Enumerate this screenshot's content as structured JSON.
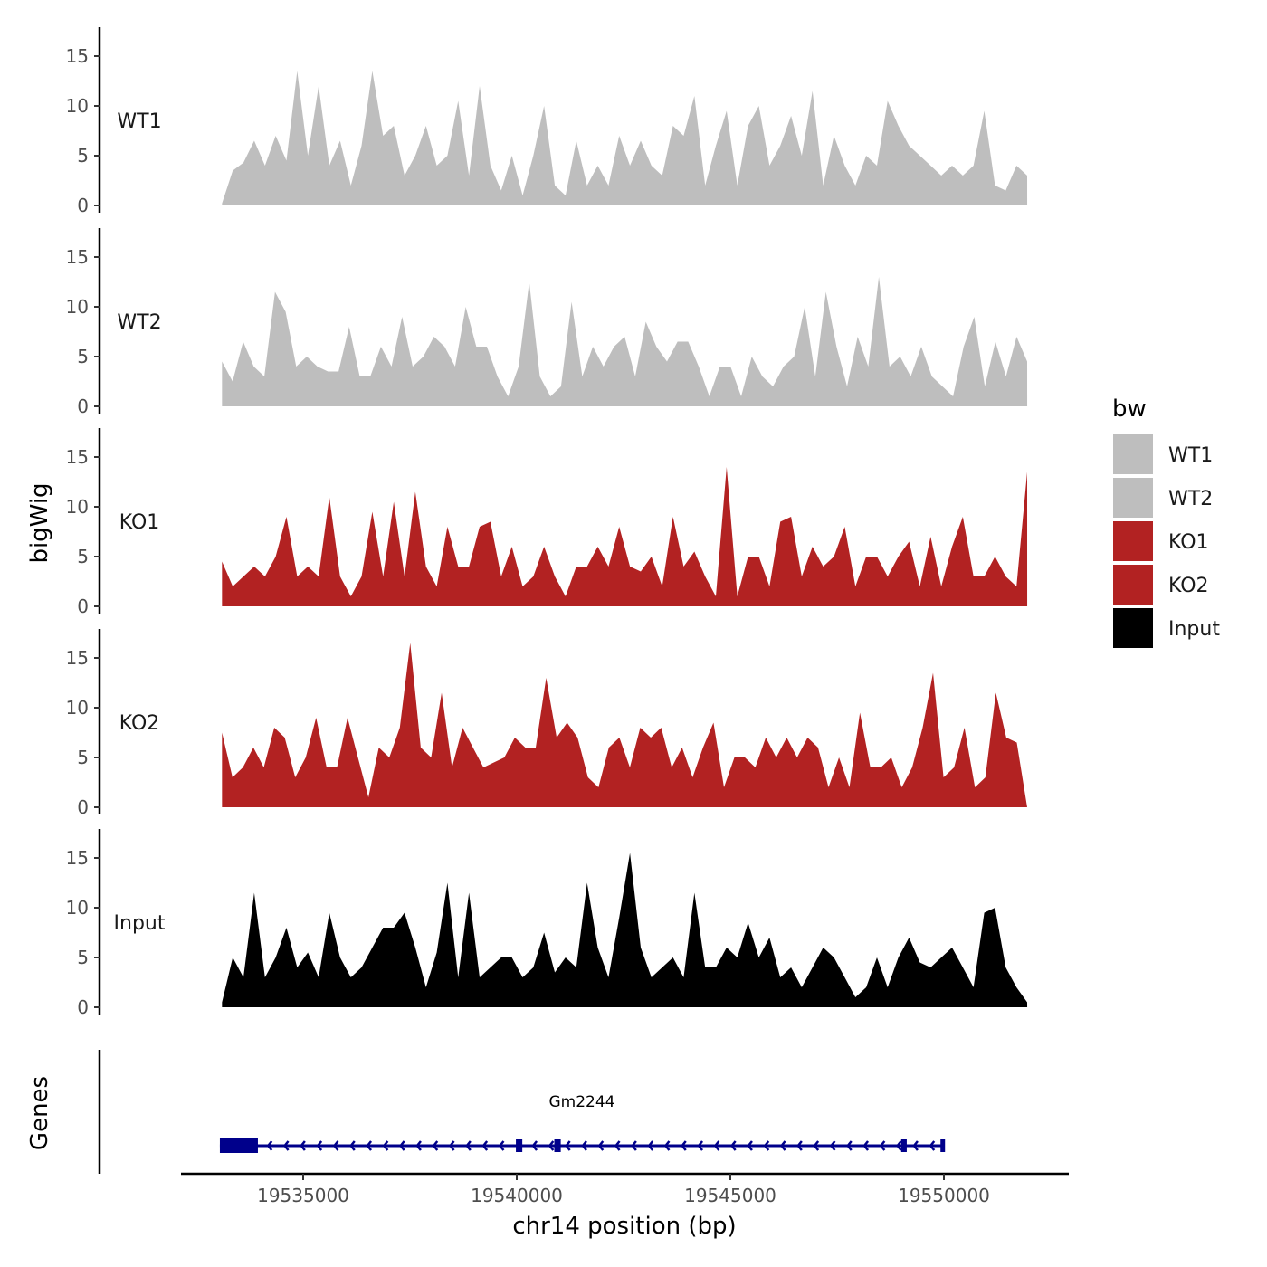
{
  "chart_data": {
    "type": "area",
    "xlabel": "chr14 position (bp)",
    "ylabel": "bigWig",
    "genes_label": "Genes",
    "xlim": [
      19531000,
      19552900
    ],
    "x_range": [
      19533100,
      19551950
    ],
    "x_ticks": [
      19535000,
      19540000,
      19545000,
      19550000
    ],
    "x_tick_labels": [
      "19535000",
      "19540000",
      "19545000",
      "19550000"
    ],
    "ylim": [
      0,
      17.5
    ],
    "y_ticks": [
      0,
      5,
      10,
      15
    ],
    "y_tick_labels": [
      "0",
      "5",
      "10",
      "15"
    ],
    "legend": {
      "title": "bw",
      "position": "right",
      "entries": [
        {
          "label": "WT1",
          "color": "#BEBEBE"
        },
        {
          "label": "WT2",
          "color": "#BEBEBE"
        },
        {
          "label": "KO1",
          "color": "#B22222"
        },
        {
          "label": "KO2",
          "color": "#B22222"
        },
        {
          "label": "Input",
          "color": "#000000"
        }
      ]
    },
    "series": [
      {
        "name": "WT1",
        "color": "#BEBEBE",
        "values": [
          0.2,
          3.5,
          4.3,
          6.5,
          4,
          7,
          4.5,
          13.5,
          5,
          12,
          4,
          6.5,
          2,
          6,
          13.5,
          7,
          8,
          3,
          5,
          8,
          4,
          5,
          10.5,
          3,
          12,
          4,
          1.5,
          5,
          1,
          5,
          10,
          2,
          1,
          6.5,
          2,
          4,
          2,
          7,
          4,
          6.5,
          4,
          3,
          8,
          7,
          11,
          2,
          6,
          9.5,
          2,
          8,
          10,
          4,
          6,
          9,
          5,
          11.5,
          2,
          7,
          4,
          2,
          5,
          4,
          10.5,
          8,
          6,
          5,
          4,
          3,
          4,
          3,
          4,
          9.5,
          2,
          1.5,
          4,
          3
        ]
      },
      {
        "name": "WT2",
        "color": "#BEBEBE",
        "values": [
          4.5,
          2.5,
          6.5,
          4,
          3,
          11.5,
          9.5,
          4,
          5,
          4,
          3.5,
          3.5,
          8,
          3,
          3,
          6,
          4,
          9,
          4,
          5,
          7,
          6,
          4,
          10,
          6,
          6,
          3,
          1,
          4,
          12.5,
          3,
          1,
          2,
          10.5,
          3,
          6,
          4,
          6,
          7,
          3,
          8.5,
          6,
          4.5,
          6.5,
          6.5,
          4,
          1,
          4,
          4,
          1,
          5,
          3,
          2,
          4,
          5,
          10,
          3,
          11.5,
          6,
          2,
          7,
          4,
          13,
          4,
          5,
          3,
          6,
          3,
          2,
          1,
          6,
          9,
          2,
          6.5,
          3,
          7,
          4.5
        ]
      },
      {
        "name": "KO1",
        "color": "#B22222",
        "values": [
          4.5,
          2,
          3,
          4,
          3,
          5,
          9,
          3,
          4,
          3,
          11,
          3,
          1,
          3,
          9.5,
          3,
          10.5,
          3,
          11.5,
          4,
          2,
          8,
          4,
          4,
          8,
          8.5,
          3,
          6,
          2,
          3,
          6,
          3,
          1,
          4,
          4,
          6,
          4,
          8,
          4,
          3.5,
          5,
          2,
          9,
          4,
          5.5,
          3,
          1,
          14,
          1,
          5,
          5,
          2,
          8.5,
          9,
          3,
          6,
          4,
          5,
          8,
          2,
          5,
          5,
          3,
          5,
          6.5,
          2,
          7,
          2,
          6,
          9,
          3,
          3,
          5,
          3,
          2,
          13.5
        ]
      },
      {
        "name": "KO2",
        "color": "#B22222",
        "values": [
          7.5,
          3,
          4,
          6,
          4,
          8,
          7,
          3,
          5,
          9,
          4,
          4,
          9,
          5,
          1,
          6,
          5,
          8,
          16.5,
          6,
          5,
          11.5,
          4,
          8,
          6,
          4,
          4.5,
          5,
          7,
          6,
          6,
          13,
          7,
          8.5,
          7,
          3,
          2,
          6,
          7,
          4,
          8,
          7,
          8,
          4,
          6,
          3,
          6,
          8.5,
          2,
          5,
          5,
          4,
          7,
          5,
          7,
          5,
          7,
          6,
          2,
          5,
          2,
          9.5,
          4,
          4,
          5,
          2,
          4,
          8,
          13.5,
          3,
          4,
          8,
          2,
          3,
          11.5,
          7,
          6.5,
          0
        ]
      },
      {
        "name": "Input",
        "color": "#000000",
        "values": [
          0.5,
          5,
          3,
          11.5,
          3,
          5,
          8,
          4,
          5.5,
          3,
          9.5,
          5,
          3,
          4,
          6,
          8,
          8,
          9.5,
          6,
          2,
          5.5,
          12.5,
          3,
          11.5,
          3,
          4,
          5,
          5,
          3,
          4,
          7.5,
          3.5,
          5,
          4,
          12.5,
          6,
          3,
          9,
          15.5,
          6,
          3,
          4,
          5,
          3,
          11.5,
          4,
          4,
          6,
          5,
          8.5,
          5,
          7,
          3,
          4,
          2,
          4,
          6,
          5,
          3,
          1,
          2,
          5,
          2,
          5,
          7,
          4.5,
          4,
          5,
          6,
          4,
          2,
          9.5,
          10,
          4,
          2,
          0.5
        ]
      }
    ],
    "gene": {
      "name": "Gm2244",
      "strand": "-",
      "color": "#00008B",
      "start": 19533050,
      "end": 19550000,
      "exons": [
        [
          19533050,
          19533940
        ],
        [
          19539980,
          19540130
        ],
        [
          19540880,
          19541030
        ],
        [
          19549000,
          19549130
        ],
        [
          19549920,
          19550000
        ]
      ]
    }
  }
}
